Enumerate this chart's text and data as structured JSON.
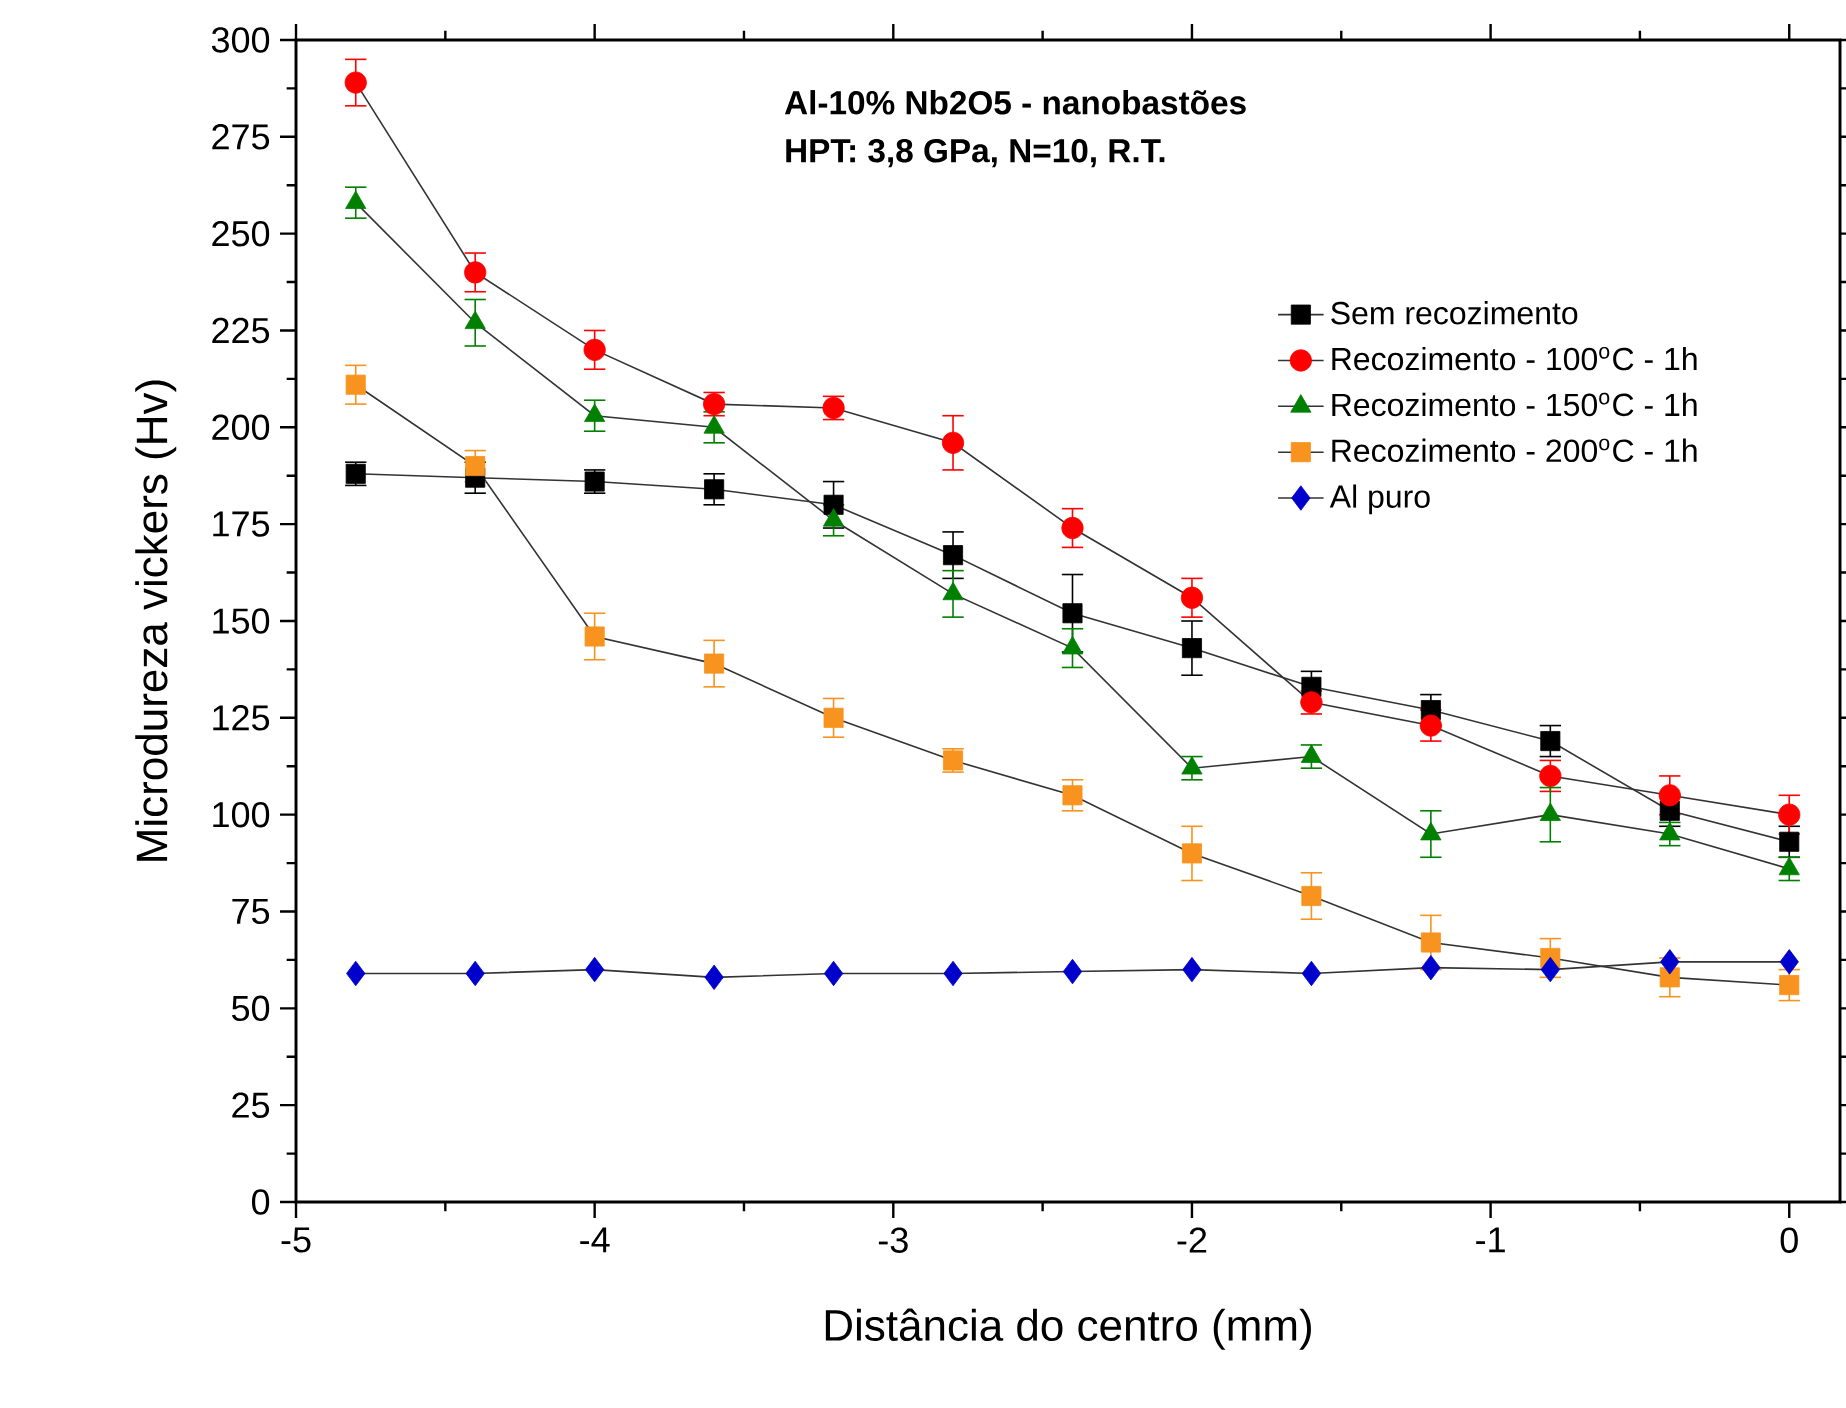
{
  "chart_data": {
    "type": "line",
    "xlabel": "Distância do centro (mm)",
    "ylabel": "Microdureza vickers (Hv)",
    "annotations": [
      "**Al-10% Nb2O5 - nanobastões**",
      "**HPT: 3,8 GPa, N=10, R.T.**"
    ],
    "x": [
      -4.8,
      -4.4,
      -4.0,
      -3.6,
      -3.2,
      -2.8,
      -2.4,
      -2.0,
      -1.6,
      -1.2,
      -0.8,
      -0.4,
      0
    ],
    "series": [
      {
        "name": "Sem recozimento",
        "color": "#000000",
        "marker": "square",
        "values": [
          188,
          187,
          186,
          184,
          180,
          167,
          152,
          143,
          133,
          127,
          119,
          101,
          93
        ],
        "errors": [
          3,
          4,
          3,
          4,
          6,
          6,
          10,
          7,
          4,
          4,
          4,
          4,
          4
        ]
      },
      {
        "name": "Recozimento - 100$^{o}$C - 1h",
        "color": "#ff0000",
        "marker": "circle",
        "values": [
          289,
          240,
          220,
          206,
          205,
          196,
          174,
          156,
          129,
          123,
          110,
          105,
          100
        ],
        "errors": [
          6,
          5,
          5,
          3,
          3,
          7,
          5,
          5,
          3,
          4,
          4,
          5,
          5
        ]
      },
      {
        "name": "Recozimento - 150$^{o}$C - 1h",
        "color": "#008000",
        "marker": "triangle",
        "values": [
          258,
          227,
          203,
          200,
          176,
          157,
          143,
          112,
          115,
          95,
          100,
          95,
          86
        ],
        "errors": [
          4,
          6,
          4,
          4,
          4,
          6,
          5,
          3,
          3,
          6,
          7,
          3,
          3
        ]
      },
      {
        "name": "Recozimento - 200$^{o}$C - 1h",
        "color": "#f7931e",
        "marker": "square",
        "values": [
          211,
          190,
          146,
          139,
          125,
          114,
          105,
          90,
          79,
          67,
          63,
          58,
          56
        ],
        "errors": [
          5,
          4,
          6,
          6,
          5,
          3,
          4,
          7,
          6,
          7,
          5,
          5,
          4
        ]
      },
      {
        "name": "Al puro",
        "color": "#0000cc",
        "marker": "diamond",
        "values": [
          59,
          59,
          60,
          58,
          59,
          59,
          59.5,
          60,
          59,
          60.5,
          60,
          62,
          62
        ]
      }
    ],
    "xlim": [
      -5,
      0.17
    ],
    "ylim": [
      0,
      300
    ],
    "xticks": [
      -5,
      -4,
      -3,
      -2,
      -1,
      0
    ],
    "yticks": [
      0,
      25,
      50,
      75,
      100,
      125,
      150,
      175,
      200,
      225,
      250,
      275,
      300
    ],
    "grid": false,
    "legend": "top right",
    "line_style": "solid"
  }
}
